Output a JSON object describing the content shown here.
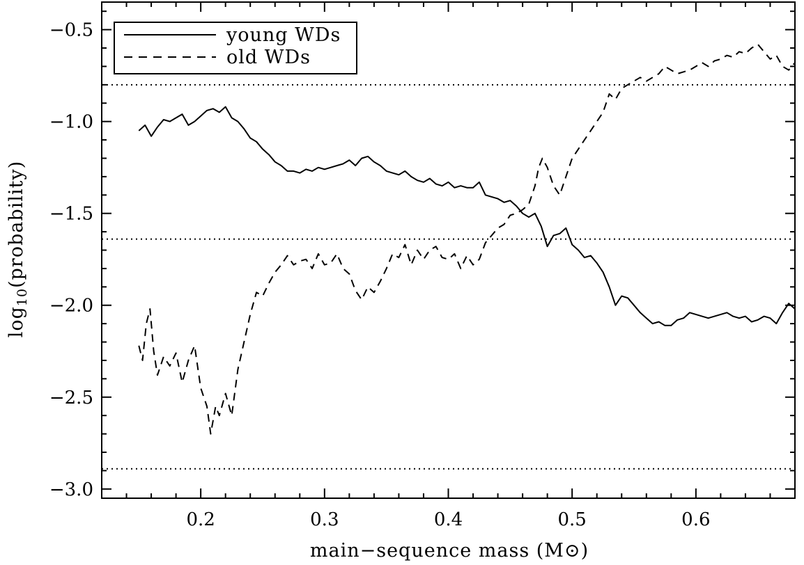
{
  "chart_data": {
    "type": "line",
    "xlabel": "main−sequence mass (M⊙)",
    "ylabel": "log10(probability)",
    "ylabel_parts": {
      "pre": "log",
      "sub": "10",
      "post": "(probability)"
    },
    "xlim": [
      0.12,
      0.68
    ],
    "ylim": [
      -3.05,
      -0.35
    ],
    "xticks": [
      0.2,
      0.3,
      0.4,
      0.5,
      0.6
    ],
    "xtick_labels": [
      "0.2",
      "0.3",
      "0.4",
      "0.5",
      "0.6"
    ],
    "yticks": [
      -3.0,
      -2.5,
      -2.0,
      -1.5,
      -1.0,
      -0.5
    ],
    "ytick_labels": [
      "−3.0",
      "−2.5",
      "−2.0",
      "−1.5",
      "−1.0",
      "−0.5"
    ],
    "reference_lines": [
      -0.8,
      -1.64,
      -2.89
    ],
    "legend": {
      "position": "top-left",
      "entries": [
        "young WDs",
        "old WDs"
      ]
    },
    "series": [
      {
        "name": "young WDs",
        "style": "solid",
        "x": [
          0.15,
          0.155,
          0.16,
          0.165,
          0.17,
          0.175,
          0.18,
          0.185,
          0.19,
          0.195,
          0.2,
          0.205,
          0.21,
          0.215,
          0.22,
          0.225,
          0.23,
          0.235,
          0.24,
          0.245,
          0.25,
          0.255,
          0.26,
          0.265,
          0.27,
          0.275,
          0.28,
          0.285,
          0.29,
          0.295,
          0.3,
          0.305,
          0.31,
          0.315,
          0.32,
          0.325,
          0.33,
          0.335,
          0.34,
          0.345,
          0.35,
          0.355,
          0.36,
          0.365,
          0.37,
          0.375,
          0.38,
          0.385,
          0.39,
          0.395,
          0.4,
          0.405,
          0.41,
          0.415,
          0.42,
          0.425,
          0.43,
          0.435,
          0.44,
          0.445,
          0.45,
          0.455,
          0.46,
          0.465,
          0.47,
          0.475,
          0.48,
          0.485,
          0.49,
          0.495,
          0.5,
          0.505,
          0.51,
          0.515,
          0.52,
          0.525,
          0.53,
          0.535,
          0.54,
          0.545,
          0.55,
          0.555,
          0.56,
          0.565,
          0.57,
          0.575,
          0.58,
          0.585,
          0.59,
          0.595,
          0.6,
          0.605,
          0.61,
          0.615,
          0.62,
          0.625,
          0.63,
          0.635,
          0.64,
          0.645,
          0.65,
          0.655,
          0.66,
          0.665,
          0.67,
          0.675,
          0.68
        ],
        "y": [
          -1.05,
          -1.02,
          -1.08,
          -1.03,
          -0.99,
          -1.0,
          -0.98,
          -0.96,
          -1.02,
          -1.0,
          -0.97,
          -0.94,
          -0.93,
          -0.95,
          -0.92,
          -0.98,
          -1.0,
          -1.04,
          -1.09,
          -1.11,
          -1.15,
          -1.18,
          -1.22,
          -1.24,
          -1.27,
          -1.27,
          -1.28,
          -1.26,
          -1.27,
          -1.25,
          -1.26,
          -1.25,
          -1.24,
          -1.23,
          -1.21,
          -1.24,
          -1.2,
          -1.19,
          -1.22,
          -1.24,
          -1.27,
          -1.28,
          -1.29,
          -1.27,
          -1.3,
          -1.32,
          -1.33,
          -1.31,
          -1.34,
          -1.35,
          -1.33,
          -1.36,
          -1.35,
          -1.36,
          -1.36,
          -1.33,
          -1.4,
          -1.41,
          -1.42,
          -1.44,
          -1.43,
          -1.46,
          -1.5,
          -1.52,
          -1.5,
          -1.57,
          -1.68,
          -1.62,
          -1.61,
          -1.58,
          -1.67,
          -1.7,
          -1.74,
          -1.73,
          -1.77,
          -1.82,
          -1.9,
          -2.0,
          -1.95,
          -1.96,
          -2.0,
          -2.04,
          -2.07,
          -2.1,
          -2.09,
          -2.11,
          -2.11,
          -2.08,
          -2.07,
          -2.04,
          -2.05,
          -2.06,
          -2.07,
          -2.06,
          -2.05,
          -2.04,
          -2.06,
          -2.07,
          -2.06,
          -2.09,
          -2.08,
          -2.06,
          -2.07,
          -2.1,
          -2.04,
          -1.99,
          -2.02
        ]
      },
      {
        "name": "old WDs",
        "style": "dashed",
        "x": [
          0.15,
          0.153,
          0.156,
          0.159,
          0.162,
          0.165,
          0.17,
          0.175,
          0.18,
          0.185,
          0.19,
          0.195,
          0.2,
          0.205,
          0.208,
          0.212,
          0.215,
          0.22,
          0.225,
          0.23,
          0.235,
          0.24,
          0.245,
          0.25,
          0.255,
          0.26,
          0.265,
          0.27,
          0.275,
          0.28,
          0.285,
          0.29,
          0.295,
          0.3,
          0.305,
          0.31,
          0.315,
          0.32,
          0.325,
          0.33,
          0.335,
          0.34,
          0.345,
          0.35,
          0.355,
          0.36,
          0.365,
          0.37,
          0.375,
          0.38,
          0.385,
          0.39,
          0.395,
          0.4,
          0.405,
          0.41,
          0.415,
          0.42,
          0.425,
          0.43,
          0.435,
          0.44,
          0.445,
          0.45,
          0.455,
          0.46,
          0.465,
          0.47,
          0.473,
          0.476,
          0.48,
          0.485,
          0.49,
          0.495,
          0.5,
          0.505,
          0.51,
          0.515,
          0.52,
          0.525,
          0.53,
          0.535,
          0.54,
          0.545,
          0.55,
          0.555,
          0.56,
          0.565,
          0.57,
          0.575,
          0.58,
          0.585,
          0.59,
          0.595,
          0.6,
          0.605,
          0.61,
          0.615,
          0.62,
          0.625,
          0.63,
          0.635,
          0.64,
          0.645,
          0.65,
          0.655,
          0.66,
          0.665,
          0.67,
          0.675,
          0.68
        ],
        "y": [
          -2.22,
          -2.3,
          -2.1,
          -2.02,
          -2.25,
          -2.38,
          -2.28,
          -2.33,
          -2.26,
          -2.42,
          -2.3,
          -2.22,
          -2.45,
          -2.55,
          -2.7,
          -2.55,
          -2.6,
          -2.48,
          -2.6,
          -2.35,
          -2.2,
          -2.05,
          -1.93,
          -1.95,
          -1.88,
          -1.82,
          -1.78,
          -1.73,
          -1.78,
          -1.76,
          -1.75,
          -1.8,
          -1.72,
          -1.78,
          -1.77,
          -1.72,
          -1.8,
          -1.83,
          -1.92,
          -1.97,
          -1.9,
          -1.93,
          -1.87,
          -1.8,
          -1.72,
          -1.74,
          -1.67,
          -1.78,
          -1.7,
          -1.75,
          -1.7,
          -1.68,
          -1.74,
          -1.75,
          -1.72,
          -1.8,
          -1.73,
          -1.78,
          -1.75,
          -1.66,
          -1.62,
          -1.58,
          -1.56,
          -1.51,
          -1.5,
          -1.48,
          -1.45,
          -1.35,
          -1.25,
          -1.2,
          -1.25,
          -1.35,
          -1.4,
          -1.3,
          -1.2,
          -1.15,
          -1.1,
          -1.05,
          -1.0,
          -0.95,
          -0.85,
          -0.88,
          -0.82,
          -0.8,
          -0.78,
          -0.76,
          -0.78,
          -0.76,
          -0.74,
          -0.7,
          -0.72,
          -0.74,
          -0.73,
          -0.72,
          -0.7,
          -0.68,
          -0.7,
          -0.67,
          -0.66,
          -0.64,
          -0.65,
          -0.62,
          -0.63,
          -0.6,
          -0.58,
          -0.62,
          -0.66,
          -0.64,
          -0.7,
          -0.72,
          -0.68
        ]
      }
    ]
  }
}
